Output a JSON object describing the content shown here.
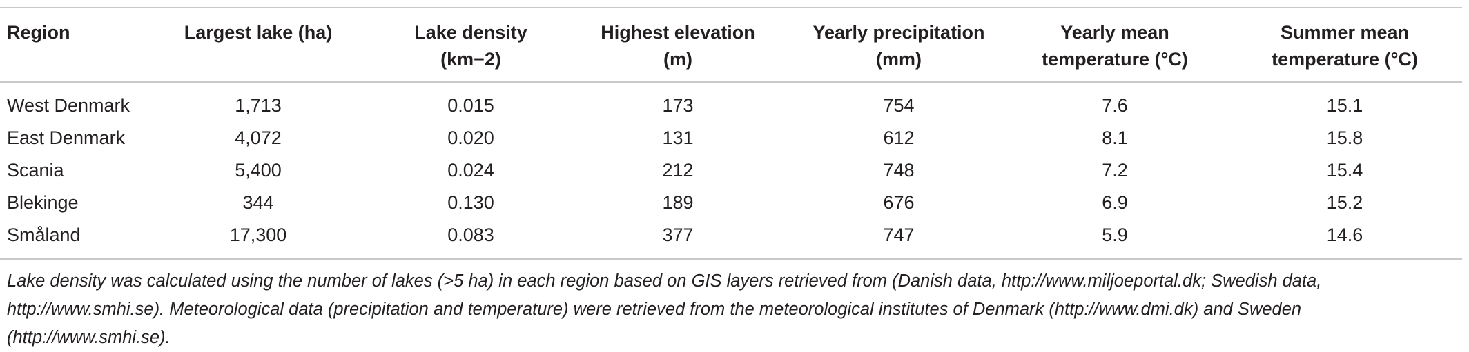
{
  "table": {
    "headers": [
      {
        "line1": "Region",
        "line2": ""
      },
      {
        "line1": "Largest lake (ha)",
        "line2": ""
      },
      {
        "line1": "Lake density",
        "line2": "(km−2)"
      },
      {
        "line1": "Highest elevation",
        "line2": "(m)"
      },
      {
        "line1": "Yearly precipitation",
        "line2": "(mm)"
      },
      {
        "line1": "Yearly mean",
        "line2": "temperature (°C)"
      },
      {
        "line1": "Summer mean",
        "line2": "temperature (°C)"
      }
    ],
    "rows": [
      [
        "West Denmark",
        "1,713",
        "0.015",
        "173",
        "754",
        "7.6",
        "15.1"
      ],
      [
        "East Denmark",
        "4,072",
        "0.020",
        "131",
        "612",
        "8.1",
        "15.8"
      ],
      [
        "Scania",
        "5,400",
        "0.024",
        "212",
        "748",
        "7.2",
        "15.4"
      ],
      [
        "Blekinge",
        "344",
        "0.130",
        "189",
        "676",
        "6.9",
        "15.2"
      ],
      [
        "Småland",
        "17,300",
        "0.083",
        "377",
        "747",
        "5.9",
        "14.6"
      ]
    ]
  },
  "footnote": "Lake density was calculated using the number of lakes (>5 ha) in each region based on GIS layers retrieved from (Danish data, http://www.miljoeportal.dk; Swedish data, http://www.smhi.se). Meteorological data (precipitation and temperature) were retrieved from the meteorological institutes of Denmark (http://www.dmi.dk) and Sweden (http://www.smhi.se)."
}
